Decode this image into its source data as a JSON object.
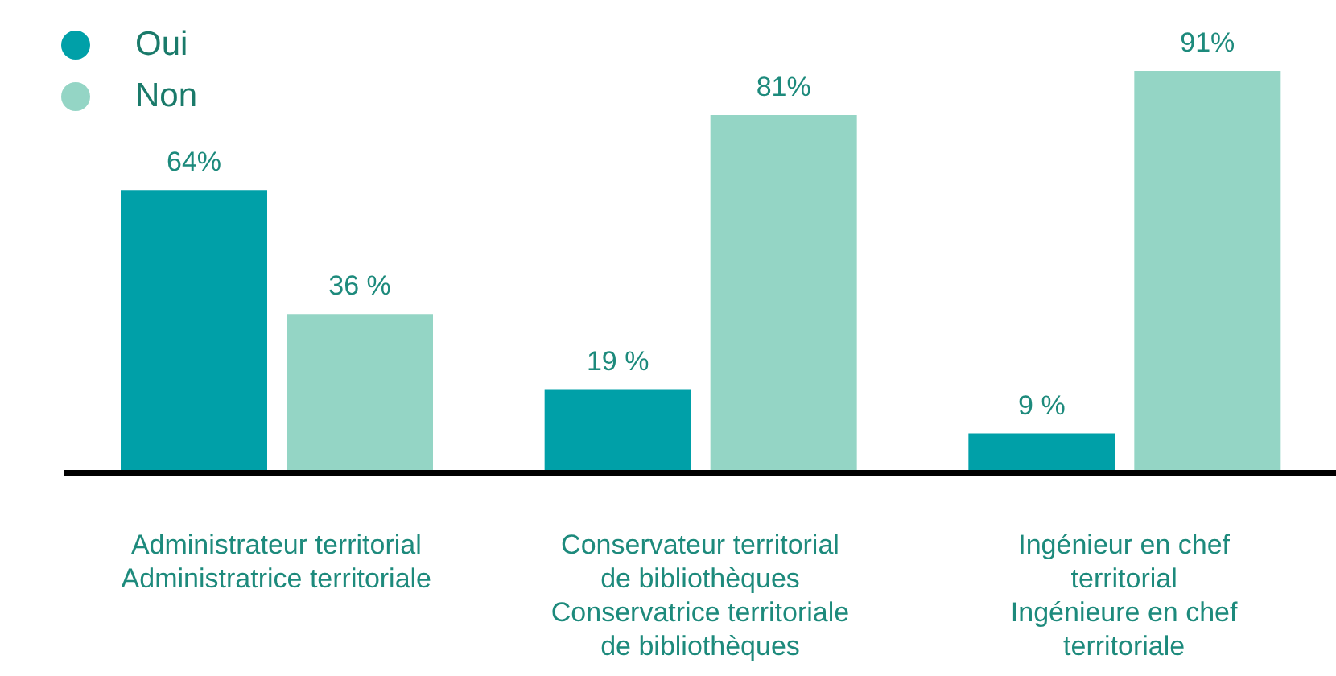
{
  "chart_data": {
    "type": "bar",
    "categories": [
      "Administrateur territorial\nAdministratrice territoriale",
      "Conservateur territorial\nde bibliothèques\nConservatrice territoriale\nde bibliothèques",
      "Ingénieur en chef\nterritorial\nIngénieure en chef\nterritoriale"
    ],
    "series": [
      {
        "name": "Oui",
        "color": "#00a0a8",
        "values": [
          64,
          19,
          9
        ],
        "value_labels": [
          "64%",
          "19 %",
          "9 %"
        ]
      },
      {
        "name": "Non",
        "color": "#94d5c5",
        "values": [
          36,
          81,
          91
        ],
        "value_labels": [
          "36 %",
          "81%",
          "91%"
        ]
      }
    ],
    "legend": "top left"
  }
}
